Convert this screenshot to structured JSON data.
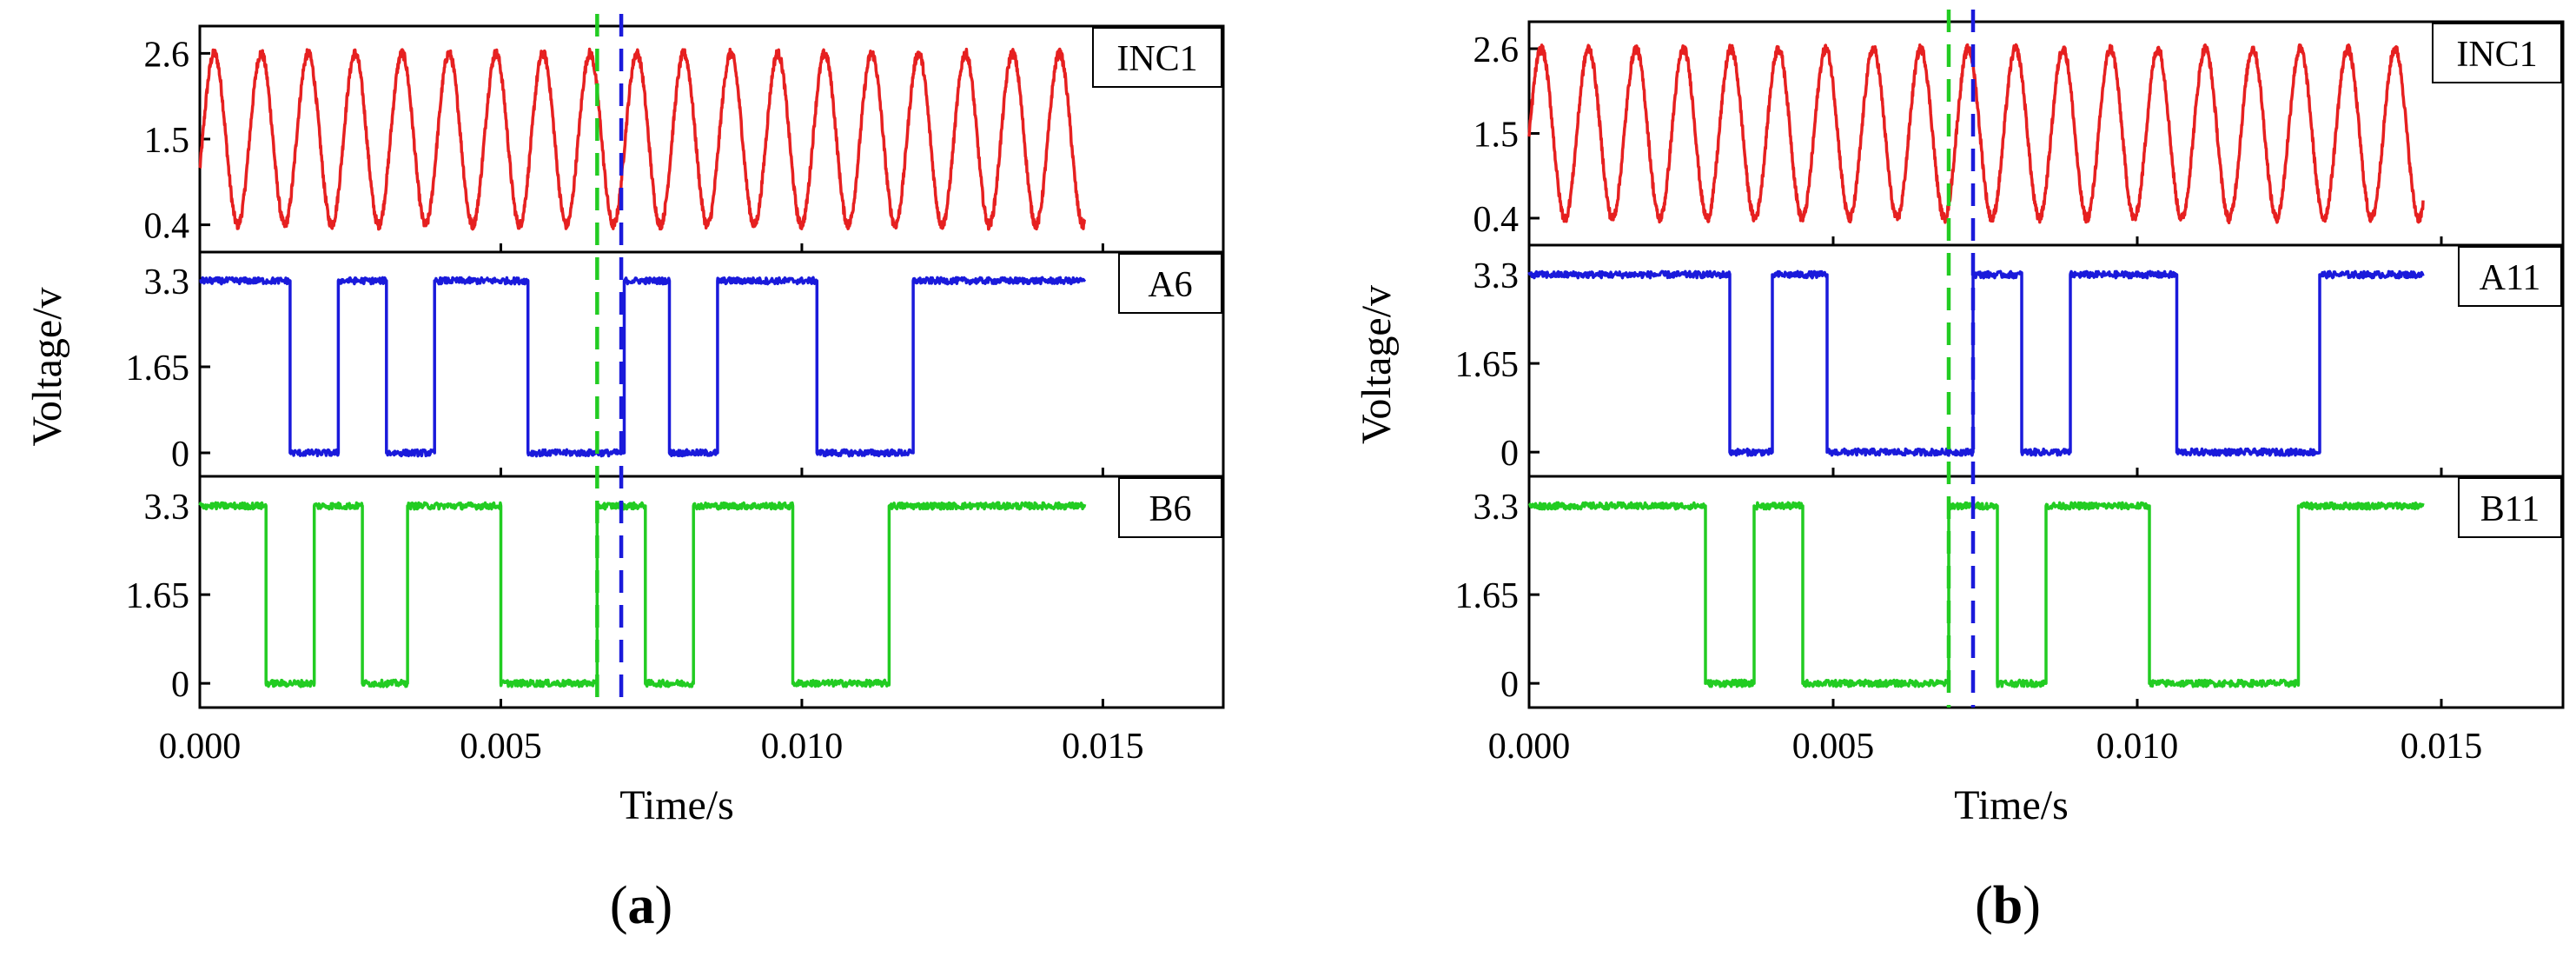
{
  "chart_data": [
    {
      "type": "line",
      "caption_letter": "a",
      "caption_open": "(",
      "caption_close": ")",
      "xlabel": "Time/s",
      "ylabel": "Voltage/v",
      "xlim": [
        0.0,
        0.017
      ],
      "xticks": [
        0.0,
        0.005,
        0.01,
        0.015
      ],
      "xtick_labels": [
        "0.000",
        "0.005",
        "0.010",
        "0.015"
      ],
      "markers": [
        {
          "name": "green-marker",
          "x": 0.0066,
          "color": "#22cc22"
        },
        {
          "name": "blue-marker",
          "x": 0.007,
          "color": "#1a1adb"
        }
      ],
      "panels": [
        {
          "label": "INC1",
          "color": "#e62020",
          "kind": "sine",
          "ylim": [
            0.05,
            2.95
          ],
          "yticks": [
            0.4,
            1.5,
            2.6
          ],
          "ytick_labels": [
            "0.4",
            "1.5",
            "2.6"
          ],
          "period": 0.00078,
          "phase_peak": 0.00102,
          "amp_low": 0.4,
          "amp_high": 2.6,
          "x_end": 0.0147
        },
        {
          "label": "A6",
          "color": "#1a1adb",
          "kind": "square",
          "ylim": [
            -0.45,
            3.85
          ],
          "yticks": [
            0,
            1.65,
            3.3
          ],
          "ytick_labels": [
            "0",
            "1.65",
            "3.3"
          ],
          "high": 3.3,
          "low": 0,
          "low_intervals": [
            [
              0.0015,
              0.0023
            ],
            [
              0.0031,
              0.0039
            ],
            [
              0.00545,
              0.00705
            ],
            [
              0.0078,
              0.0086
            ],
            [
              0.01025,
              0.01185
            ]
          ],
          "x_end": 0.0147
        },
        {
          "label": "B6",
          "color": "#22cc22",
          "kind": "square",
          "ylim": [
            -0.45,
            3.85
          ],
          "yticks": [
            0,
            1.65,
            3.3
          ],
          "ytick_labels": [
            "0",
            "1.65",
            "3.3"
          ],
          "high": 3.3,
          "low": 0,
          "low_intervals": [
            [
              0.0011,
              0.0019
            ],
            [
              0.0027,
              0.00345
            ],
            [
              0.005,
              0.0066
            ],
            [
              0.0074,
              0.0082
            ],
            [
              0.00985,
              0.01145
            ]
          ],
          "x_end": 0.0147
        }
      ]
    },
    {
      "type": "line",
      "caption_letter": "b",
      "caption_open": "(",
      "caption_close": ")",
      "xlabel": "Time/s",
      "ylabel": "Voltage/v",
      "xlim": [
        0.0,
        0.017
      ],
      "xticks": [
        0.0,
        0.005,
        0.01,
        0.015
      ],
      "xtick_labels": [
        "0.000",
        "0.005",
        "0.010",
        "0.015"
      ],
      "markers": [
        {
          "name": "green-marker",
          "x": 0.0069,
          "color": "#22cc22"
        },
        {
          "name": "blue-marker",
          "x": 0.0073,
          "color": "#1a1adb"
        }
      ],
      "panels": [
        {
          "label": "INC1",
          "color": "#e62020",
          "kind": "sine",
          "ylim": [
            0.05,
            2.95
          ],
          "yticks": [
            0.4,
            1.5,
            2.6
          ],
          "ytick_labels": [
            "0.4",
            "1.5",
            "2.6"
          ],
          "period": 0.00078,
          "phase_peak": 0.0002,
          "amp_low": 0.4,
          "amp_high": 2.6,
          "x_end": 0.0147
        },
        {
          "label": "A11",
          "color": "#1a1adb",
          "kind": "square",
          "ylim": [
            -0.45,
            3.85
          ],
          "yticks": [
            0,
            1.65,
            3.3
          ],
          "ytick_labels": [
            "0",
            "1.65",
            "3.3"
          ],
          "high": 3.3,
          "low": 0,
          "low_intervals": [
            [
              0.0033,
              0.004
            ],
            [
              0.0049,
              0.0073
            ],
            [
              0.0081,
              0.0089
            ],
            [
              0.01065,
              0.013
            ]
          ],
          "x_end": 0.0147
        },
        {
          "label": "B11",
          "color": "#22cc22",
          "kind": "square",
          "ylim": [
            -0.45,
            3.85
          ],
          "yticks": [
            0,
            1.65,
            3.3
          ],
          "ytick_labels": [
            "0",
            "1.65",
            "3.3"
          ],
          "high": 3.3,
          "low": 0,
          "low_intervals": [
            [
              0.0029,
              0.0037
            ],
            [
              0.0045,
              0.0069
            ],
            [
              0.0077,
              0.0085
            ],
            [
              0.0102,
              0.01265
            ]
          ],
          "x_end": 0.0147
        }
      ]
    }
  ]
}
